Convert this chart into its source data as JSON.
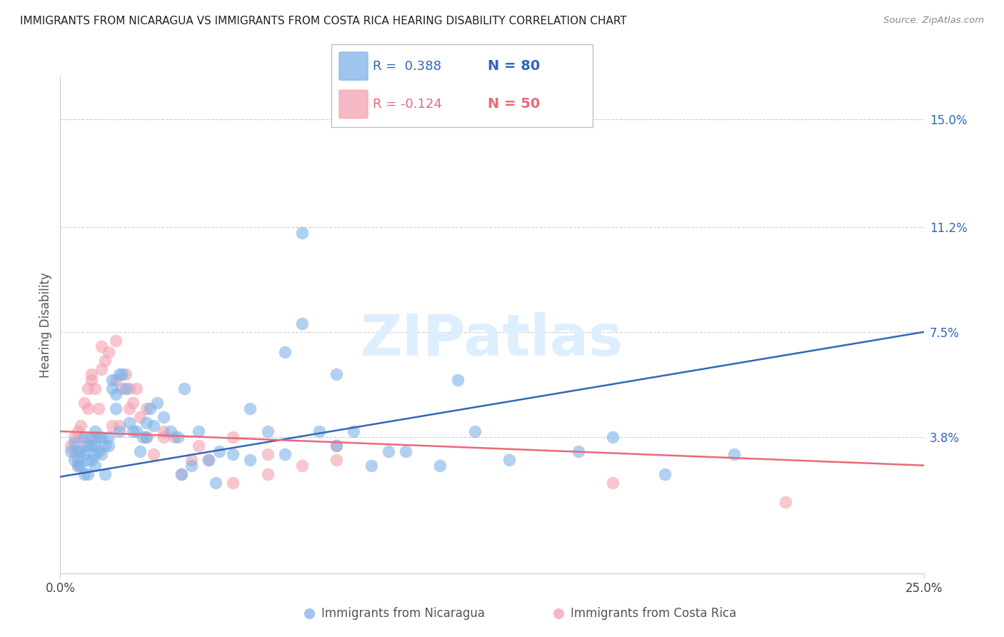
{
  "title": "IMMIGRANTS FROM NICARAGUA VS IMMIGRANTS FROM COSTA RICA HEARING DISABILITY CORRELATION CHART",
  "source": "Source: ZipAtlas.com",
  "ylabel": "Hearing Disability",
  "ytick_labels": [
    "15.0%",
    "11.2%",
    "7.5%",
    "3.8%"
  ],
  "ytick_values": [
    0.15,
    0.112,
    0.075,
    0.038
  ],
  "xlim": [
    0.0,
    0.25
  ],
  "ylim": [
    -0.01,
    0.165
  ],
  "color_blue": "#7EB3E8",
  "color_pink": "#F4A0B0",
  "color_blue_line": "#3366BB",
  "color_pink_line": "#E8697A",
  "color_grid": "#cccccc",
  "watermark_text": "ZIPatlas",
  "watermark_color": "#ddeeff",
  "blue_line_x": [
    0.0,
    0.25
  ],
  "blue_line_y": [
    0.024,
    0.075
  ],
  "pink_line_x": [
    0.0,
    0.25
  ],
  "pink_line_y": [
    0.04,
    0.028
  ],
  "blue_points_x": [
    0.003,
    0.004,
    0.004,
    0.005,
    0.005,
    0.005,
    0.006,
    0.006,
    0.007,
    0.007,
    0.007,
    0.008,
    0.008,
    0.008,
    0.009,
    0.009,
    0.009,
    0.01,
    0.01,
    0.01,
    0.01,
    0.011,
    0.011,
    0.012,
    0.012,
    0.013,
    0.013,
    0.014,
    0.014,
    0.015,
    0.015,
    0.016,
    0.016,
    0.017,
    0.017,
    0.018,
    0.019,
    0.02,
    0.021,
    0.022,
    0.023,
    0.024,
    0.025,
    0.026,
    0.027,
    0.028,
    0.03,
    0.032,
    0.034,
    0.036,
    0.038,
    0.04,
    0.043,
    0.046,
    0.05,
    0.055,
    0.06,
    0.065,
    0.07,
    0.075,
    0.08,
    0.085,
    0.09,
    0.095,
    0.1,
    0.11,
    0.12,
    0.13,
    0.15,
    0.07,
    0.08,
    0.115,
    0.16,
    0.175,
    0.195,
    0.025,
    0.035,
    0.045,
    0.055,
    0.065
  ],
  "blue_points_y": [
    0.033,
    0.03,
    0.036,
    0.03,
    0.033,
    0.028,
    0.033,
    0.028,
    0.025,
    0.032,
    0.038,
    0.03,
    0.035,
    0.025,
    0.03,
    0.035,
    0.038,
    0.032,
    0.035,
    0.028,
    0.04,
    0.033,
    0.038,
    0.038,
    0.032,
    0.035,
    0.025,
    0.038,
    0.035,
    0.055,
    0.058,
    0.053,
    0.048,
    0.06,
    0.04,
    0.06,
    0.055,
    0.043,
    0.04,
    0.04,
    0.033,
    0.038,
    0.043,
    0.048,
    0.042,
    0.05,
    0.045,
    0.04,
    0.038,
    0.055,
    0.028,
    0.04,
    0.03,
    0.033,
    0.032,
    0.03,
    0.04,
    0.032,
    0.078,
    0.04,
    0.035,
    0.04,
    0.028,
    0.033,
    0.033,
    0.028,
    0.04,
    0.03,
    0.033,
    0.11,
    0.06,
    0.058,
    0.038,
    0.025,
    0.032,
    0.038,
    0.025,
    0.022,
    0.048,
    0.068
  ],
  "pink_points_x": [
    0.003,
    0.004,
    0.004,
    0.005,
    0.005,
    0.006,
    0.006,
    0.007,
    0.007,
    0.008,
    0.008,
    0.009,
    0.009,
    0.01,
    0.01,
    0.011,
    0.012,
    0.013,
    0.014,
    0.015,
    0.016,
    0.017,
    0.018,
    0.019,
    0.02,
    0.021,
    0.022,
    0.023,
    0.025,
    0.027,
    0.03,
    0.033,
    0.038,
    0.043,
    0.05,
    0.06,
    0.07,
    0.08,
    0.16,
    0.21,
    0.012,
    0.016,
    0.02,
    0.025,
    0.03,
    0.035,
    0.04,
    0.05,
    0.06,
    0.08
  ],
  "pink_points_y": [
    0.035,
    0.033,
    0.038,
    0.028,
    0.04,
    0.042,
    0.038,
    0.05,
    0.035,
    0.048,
    0.055,
    0.058,
    0.06,
    0.055,
    0.038,
    0.048,
    0.062,
    0.065,
    0.068,
    0.042,
    0.058,
    0.042,
    0.055,
    0.06,
    0.055,
    0.05,
    0.055,
    0.045,
    0.038,
    0.032,
    0.038,
    0.038,
    0.03,
    0.03,
    0.038,
    0.032,
    0.028,
    0.03,
    0.022,
    0.015,
    0.07,
    0.072,
    0.048,
    0.048,
    0.04,
    0.025,
    0.035,
    0.022,
    0.025,
    0.035
  ]
}
